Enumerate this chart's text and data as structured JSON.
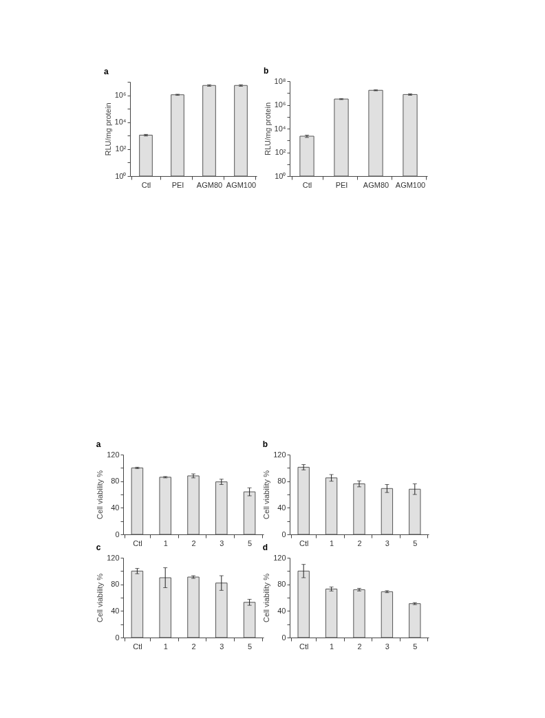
{
  "chart_data": [
    {
      "type": "bar",
      "title": "a",
      "ylabel": "RLU/mg protein",
      "categories": [
        "Ctl",
        "PEI",
        "AGM80",
        "AGM100"
      ],
      "values": [
        1100,
        1100000,
        5400000,
        5400000
      ],
      "errors": [
        150,
        100000,
        700000,
        700000
      ],
      "color": "#e0e0e0",
      "log": true,
      "ylim": [
        1,
        10000000
      ],
      "yticks": [
        {
          "value": 1,
          "label": "10⁰"
        },
        {
          "value": 10,
          "label": null
        },
        {
          "value": 100,
          "label": "10²"
        },
        {
          "value": 1000,
          "label": null
        },
        {
          "value": 10000,
          "label": "10⁴"
        },
        {
          "value": 100000,
          "label": null
        },
        {
          "value": 1000000,
          "label": "10⁶"
        },
        {
          "value": 10000000,
          "label": null
        }
      ]
    },
    {
      "type": "bar",
      "title": "b",
      "ylabel": "RLU/mg protein",
      "categories": [
        "Ctl",
        "PEI",
        "AGM80",
        "AGM100"
      ],
      "values": [
        2300,
        3100000,
        17000000,
        7500000
      ],
      "errors": [
        500,
        300000,
        1500000,
        1000000
      ],
      "color": "#e0e0e0",
      "log": true,
      "ylim": [
        1,
        100000000
      ],
      "yticks": [
        {
          "value": 1,
          "label": "10⁰"
        },
        {
          "value": 10,
          "label": null
        },
        {
          "value": 100,
          "label": "10²"
        },
        {
          "value": 1000,
          "label": null
        },
        {
          "value": 10000,
          "label": "10⁴"
        },
        {
          "value": 100000,
          "label": null
        },
        {
          "value": 1000000,
          "label": "10⁶"
        },
        {
          "value": 10000000,
          "label": null
        },
        {
          "value": 100000000,
          "label": "10⁸"
        }
      ]
    },
    {
      "type": "bar",
      "title": "a",
      "ylabel": "Cell viability %",
      "categories": [
        "Ctl",
        "1",
        "2",
        "3",
        "5"
      ],
      "values": [
        100,
        86,
        88,
        79,
        64
      ],
      "errors": [
        1,
        1,
        3,
        4,
        6
      ],
      "color": "#e0e0e0",
      "ylim": [
        0,
        120
      ],
      "yticks": [
        0,
        {
          "value": 20,
          "label": null
        },
        40,
        {
          "value": 60,
          "label": null
        },
        80,
        {
          "value": 100,
          "label": null
        },
        120
      ]
    },
    {
      "type": "bar",
      "title": "b",
      "ylabel": "Cell viability %",
      "categories": [
        "Ctl",
        "1",
        "2",
        "3",
        "5"
      ],
      "values": [
        101,
        85,
        76,
        69,
        68
      ],
      "errors": [
        4,
        5,
        4.5,
        6,
        8
      ],
      "color": "#e0e0e0",
      "ylim": [
        0,
        120
      ],
      "yticks": [
        0,
        {
          "value": 20,
          "label": null
        },
        40,
        {
          "value": 60,
          "label": null
        },
        80,
        {
          "value": 100,
          "label": null
        },
        120
      ]
    },
    {
      "type": "bar",
      "title": "c",
      "ylabel": "Cell viability %",
      "categories": [
        "Ctl",
        "1",
        "2",
        "3",
        "5"
      ],
      "values": [
        100,
        90,
        91,
        82,
        53
      ],
      "errors": [
        4,
        15,
        2,
        11,
        4.5
      ],
      "color": "#e0e0e0",
      "ylim": [
        0,
        120
      ],
      "yticks": [
        0,
        {
          "value": 20,
          "label": null
        },
        40,
        {
          "value": 60,
          "label": null
        },
        80,
        {
          "value": 100,
          "label": null
        },
        120
      ]
    },
    {
      "type": "bar",
      "title": "d",
      "ylabel": "Cell viability %",
      "categories": [
        "Ctl",
        "1",
        "2",
        "3",
        "5"
      ],
      "values": [
        100,
        73,
        72,
        69,
        51
      ],
      "errors": [
        10,
        3,
        2,
        1.5,
        1.5
      ],
      "color": "#e0e0e0",
      "ylim": [
        0,
        120
      ],
      "yticks": [
        0,
        {
          "value": 20,
          "label": null
        },
        40,
        {
          "value": 60,
          "label": null
        },
        80,
        {
          "value": 100,
          "label": null
        },
        120
      ]
    }
  ]
}
